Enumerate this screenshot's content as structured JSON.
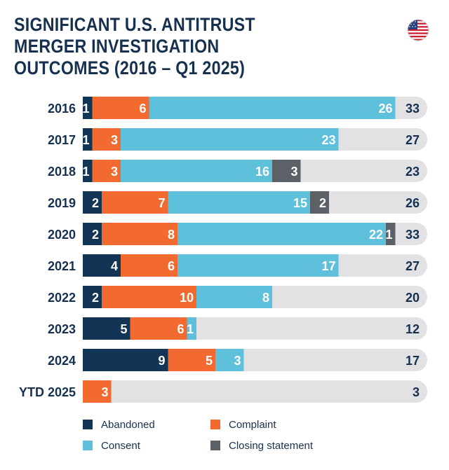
{
  "title_lines": [
    "SIGNIFICANT U.S. ANTITRUST",
    "MERGER INVESTIGATION",
    "OUTCOMES (2016 – Q1 2025)"
  ],
  "flag_icon": "us-flag-icon",
  "colors": {
    "Abandoned": "#133555",
    "Complaint": "#f26a30",
    "Consent": "#5fc0dc",
    "Closing statement": "#5c6168",
    "track": "#e2e2e4",
    "text": "#16304f"
  },
  "chart_data": {
    "type": "bar",
    "orientation": "horizontal",
    "stacked": true,
    "title": "SIGNIFICANT U.S. ANTITRUST MERGER INVESTIGATION OUTCOMES (2016 – Q1 2025)",
    "xlim": [
      0,
      33
    ],
    "categories": [
      "2016",
      "2017",
      "2018",
      "2019",
      "2020",
      "2021",
      "2022",
      "2023",
      "2024",
      "YTD 2025"
    ],
    "series": [
      {
        "name": "Abandoned",
        "values": [
          1,
          1,
          1,
          2,
          2,
          4,
          2,
          5,
          9,
          0
        ]
      },
      {
        "name": "Complaint",
        "values": [
          6,
          3,
          3,
          7,
          8,
          6,
          10,
          6,
          5,
          3
        ]
      },
      {
        "name": "Consent",
        "values": [
          26,
          23,
          16,
          15,
          22,
          17,
          8,
          1,
          3,
          0
        ]
      },
      {
        "name": "Closing statement",
        "values": [
          0,
          0,
          3,
          2,
          1,
          0,
          0,
          0,
          0,
          0
        ]
      }
    ],
    "totals": [
      33,
      27,
      23,
      26,
      33,
      27,
      20,
      12,
      17,
      3
    ],
    "legend_position": "bottom"
  },
  "legend": {
    "items": [
      "Abandoned",
      "Complaint",
      "Consent",
      "Closing statement"
    ]
  }
}
